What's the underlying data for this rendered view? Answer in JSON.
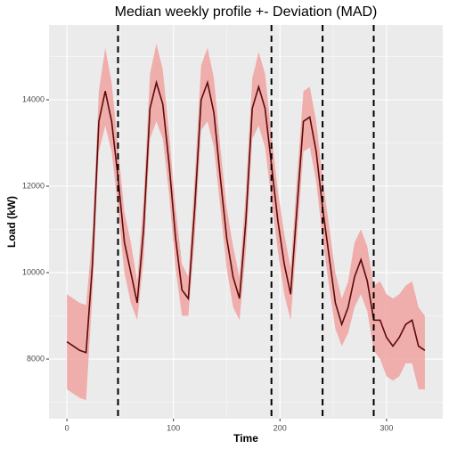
{
  "chart_data": {
    "type": "line",
    "title": "Median weekly profile +- Deviation (MAD)",
    "xlabel": "Time",
    "ylabel": "Load (kW)",
    "x": [
      0,
      6,
      12,
      18,
      24,
      30,
      36,
      42,
      48,
      54,
      60,
      66,
      72,
      78,
      84,
      90,
      96,
      102,
      108,
      114,
      120,
      126,
      132,
      138,
      144,
      150,
      156,
      162,
      168,
      174,
      180,
      186,
      192,
      198,
      204,
      210,
      216,
      222,
      228,
      234,
      240,
      246,
      252,
      258,
      264,
      270,
      276,
      282,
      288,
      294,
      300,
      306,
      312,
      318,
      324,
      330,
      336
    ],
    "series": [
      {
        "color": "#5c0a0a",
        "values": [
          8400,
          8300,
          8200,
          8150,
          10200,
          13500,
          14200,
          13500,
          12200,
          10700,
          10000,
          9300,
          11000,
          13800,
          14400,
          13900,
          12500,
          10800,
          9600,
          9400,
          11500,
          14000,
          14400,
          13700,
          12200,
          10800,
          9900,
          9400,
          11200,
          13800,
          14300,
          13800,
          12500,
          11200,
          10200,
          9500,
          11500,
          13500,
          13600,
          12800,
          11500,
          10400,
          9300,
          8800,
          9200,
          9900,
          10300,
          9800,
          8900,
          8900,
          8500,
          8300,
          8500,
          8800,
          8900,
          8300,
          8200
        ]
      }
    ],
    "ribbon": {
      "color": "#f0a3a0",
      "lower": [
        7300,
        7200,
        7100,
        7050,
        9500,
        12800,
        13400,
        12800,
        11500,
        10000,
        9300,
        8900,
        10300,
        13100,
        13500,
        13100,
        11800,
        10100,
        9000,
        9000,
        10800,
        13300,
        13500,
        12900,
        11500,
        10100,
        9200,
        8900,
        10500,
        13100,
        13400,
        12900,
        11700,
        10500,
        9500,
        8900,
        10800,
        12800,
        12900,
        12100,
        10800,
        9700,
        8700,
        8300,
        8600,
        9200,
        9500,
        9100,
        8200,
        8000,
        7600,
        7500,
        7600,
        7900,
        7900,
        7300,
        7300
      ],
      "upper": [
        9500,
        9400,
        9300,
        9250,
        10900,
        14200,
        15200,
        14400,
        12900,
        11400,
        10700,
        9800,
        11700,
        14600,
        15300,
        14700,
        13200,
        11500,
        10200,
        9900,
        12200,
        14800,
        15200,
        14500,
        12900,
        11500,
        10600,
        9900,
        11900,
        14500,
        15100,
        14600,
        13200,
        11900,
        10900,
        10100,
        12200,
        14200,
        14300,
        13500,
        12200,
        11100,
        10000,
        9400,
        9800,
        10700,
        11000,
        10600,
        9700,
        9800,
        9500,
        9400,
        9500,
        9700,
        9800,
        9200,
        9000
      ]
    },
    "vlines": [
      48,
      192,
      240,
      288
    ],
    "xlim": [
      -16.8,
      352.8
    ],
    "ylim": [
      6619,
      15732
    ],
    "xticks": [
      0,
      100,
      200,
      300
    ],
    "yticks": [
      8000,
      10000,
      12000,
      14000
    ],
    "minor_xticks": [
      50,
      150,
      250
    ],
    "minor_yticks": [
      7000,
      9000,
      11000,
      13000,
      15000
    ],
    "grid": true
  }
}
